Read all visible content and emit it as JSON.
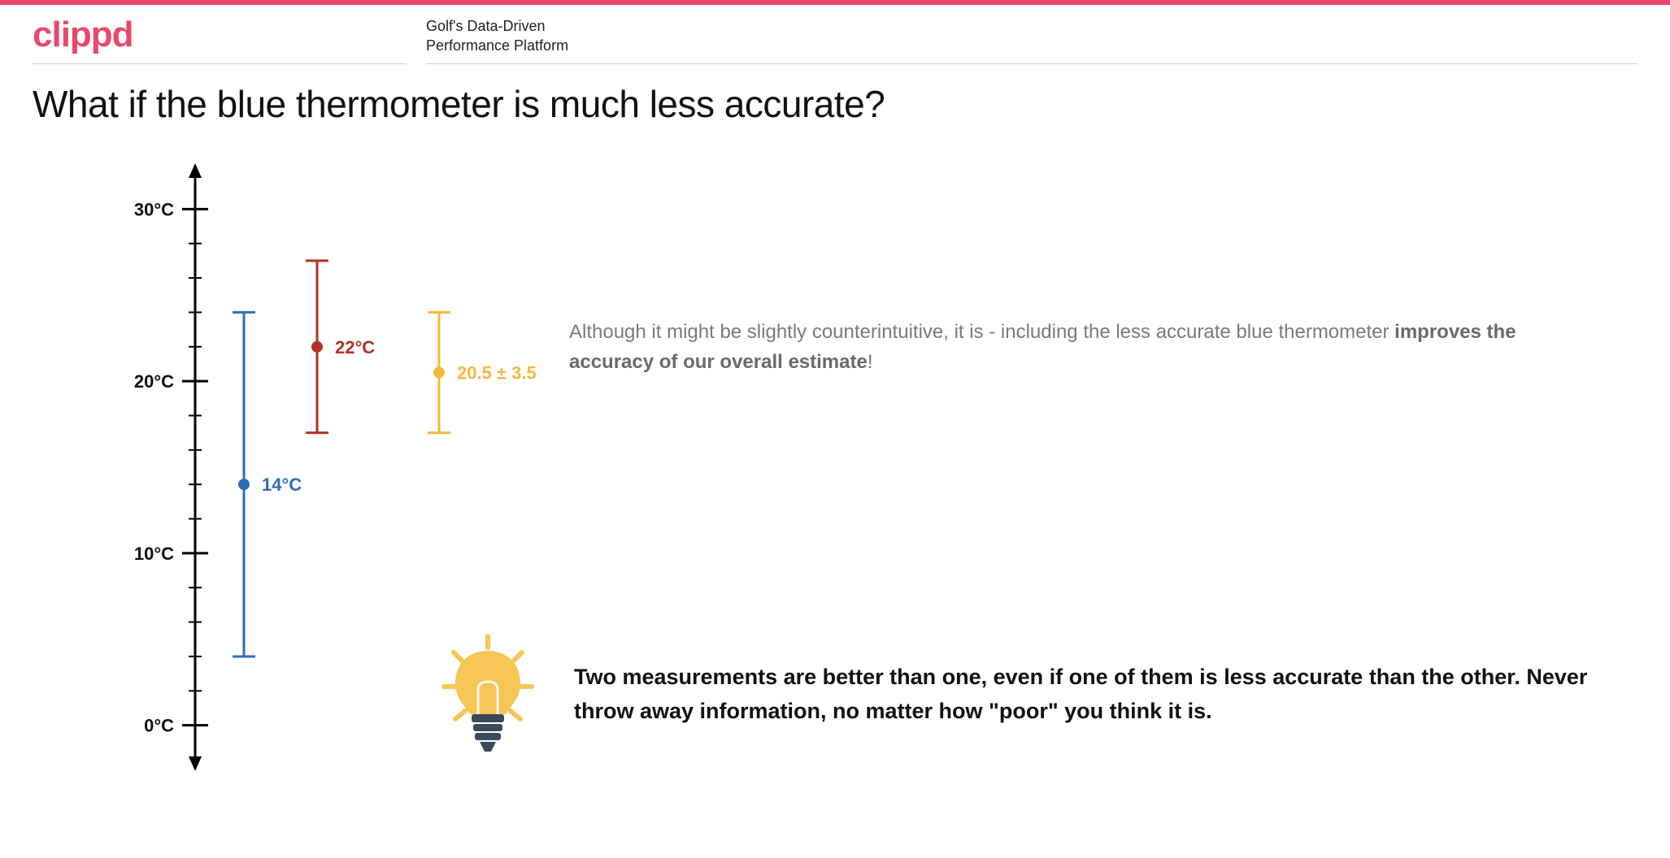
{
  "brand": {
    "logo_text": "clippd",
    "logo_color": "#e9486a",
    "tagline_line1": "Golf's Data-Driven",
    "tagline_line2": "Performance Platform",
    "topbar_color": "#e9486a"
  },
  "title": "What if the blue thermometer is much less accurate?",
  "chart": {
    "axis_color": "#000000",
    "tick_label_fontsize": 22,
    "tick_label_weight": "700",
    "y_min": -2,
    "y_max": 32,
    "major_ticks": [
      {
        "value": 0,
        "label": "0°C"
      },
      {
        "value": 10,
        "label": "10°C"
      },
      {
        "value": 20,
        "label": "20°C"
      },
      {
        "value": 30,
        "label": "30°C"
      }
    ],
    "minor_tick_step": 2,
    "series": [
      {
        "name": "blue",
        "x": 0,
        "center": 14,
        "err": 10,
        "color": "#2f6db8",
        "label": "14°C"
      },
      {
        "name": "red",
        "x": 1,
        "center": 22,
        "err": 5,
        "color": "#b43224",
        "label": "22°C"
      },
      {
        "name": "yellow",
        "x": 2,
        "center": 20.5,
        "err": 3.5,
        "color": "#f3b93d",
        "label": "20.5 ± 3.5°C",
        "starred": true
      }
    ],
    "point_label_fontsize": 22,
    "point_label_weight": "700",
    "star_color": "#f3b93d",
    "background_color": "#ffffff"
  },
  "note1": {
    "pre": "Although it might be slightly counterintuitive, it is - including the less accurate blue thermometer ",
    "bold": "improves the accuracy of our overall estimate",
    "post": "!"
  },
  "takeaway": "Two measurements are better than one, even if one of them is less accurate than the other. Never throw away information, no matter how \"poor\" you think it is.",
  "bulb": {
    "glass_color": "#f6c756",
    "base_color": "#3b4a5a",
    "ray_color": "#f6c756"
  }
}
